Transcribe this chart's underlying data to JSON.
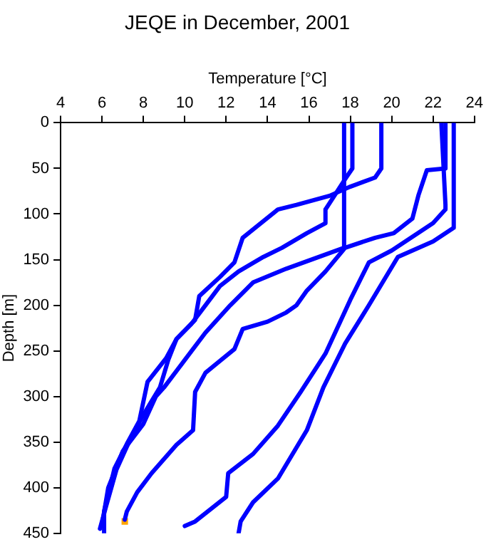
{
  "chart_data": {
    "type": "line",
    "title": "JEQE in December, 2001",
    "xlabel": "Temperature [°C]",
    "ylabel": "Depth [m]",
    "xlim": [
      4,
      24
    ],
    "xticks": [
      4,
      6,
      8,
      10,
      12,
      14,
      16,
      18,
      20,
      22,
      24
    ],
    "ylim": [
      450,
      0
    ],
    "yticks": [
      0,
      50,
      100,
      150,
      200,
      250,
      300,
      350,
      400,
      450
    ],
    "grid": false,
    "legend": false,
    "marker": "none",
    "line_style": "solid",
    "series": [
      {
        "color": "#0000ff",
        "x": [
          19.5,
          19.5,
          19.2,
          18.0,
          17.0,
          15.4,
          14.5,
          12.8,
          12.4,
          11.7,
          10.7,
          10.5,
          9.6,
          9.1,
          8.2,
          7.8,
          7.2,
          6.6,
          6.1,
          6.1
        ],
        "values": [
          0,
          50,
          60,
          70,
          80,
          90,
          95,
          126,
          153,
          169,
          190,
          216,
          237,
          258,
          284,
          327,
          352,
          379,
          426,
          450
        ]
      },
      {
        "color": "#0000ff",
        "x": [
          18.1,
          18.1,
          17.8,
          16.8,
          16.8,
          15.9,
          14.7,
          13.8,
          12.6,
          11.7,
          11.0,
          10.3,
          9.6,
          9.2,
          8.8,
          8.0,
          7.3,
          6.7,
          6.2,
          5.9
        ],
        "values": [
          0,
          50,
          60,
          95,
          110,
          121,
          137,
          147,
          163,
          179,
          200,
          221,
          237,
          260,
          290,
          320,
          350,
          380,
          420,
          445
        ]
      },
      {
        "color": "#0000ff",
        "x": [
          17.7,
          17.7,
          14.9,
          13.3,
          12.2,
          11.0,
          10.0,
          9.0,
          8.6,
          8.0,
          7.0,
          6.3,
          6.0
        ],
        "values": [
          0,
          137,
          160,
          175,
          200,
          230,
          260,
          290,
          300,
          330,
          360,
          400,
          440
        ]
      },
      {
        "color": "#0000ff",
        "x": [
          22.6,
          22.6,
          21.7,
          21.3,
          21.0,
          20.1,
          19.2,
          17.75,
          16.8,
          15.9,
          15.4,
          14.9,
          14.0,
          12.8,
          12.4,
          11.0,
          10.5,
          10.4,
          9.6,
          8.4,
          7.7,
          7.2,
          7.1
        ],
        "values": [
          0,
          50,
          52,
          79,
          105,
          121,
          126,
          137,
          163,
          184,
          200,
          208,
          218,
          226,
          248,
          274,
          295,
          337,
          353,
          384,
          405,
          426,
          435
        ]
      },
      {
        "color": "#0000ff",
        "x": [
          22.4,
          22.6,
          22.6,
          22.0,
          21.0,
          20.0,
          18.9,
          18.0,
          16.8,
          15.6,
          14.5,
          13.3,
          12.1,
          12.0,
          10.5,
          10.0
        ],
        "values": [
          0,
          90,
          95,
          110,
          125,
          140,
          153,
          194,
          253,
          295,
          332,
          363,
          384,
          410,
          437,
          442
        ]
      },
      {
        "color": "#0000ff",
        "x": [
          23.0,
          23.0,
          22.0,
          20.3,
          18.9,
          17.75,
          16.7,
          15.9,
          14.5,
          13.3,
          12.7,
          12.6
        ],
        "values": [
          0,
          115,
          130,
          147,
          200,
          242,
          290,
          337,
          390,
          416,
          437,
          450
        ]
      },
      {
        "type": "scatter",
        "marker": "square",
        "color": "#ffa500",
        "x": [
          7.1
        ],
        "values": [
          437
        ]
      }
    ]
  }
}
